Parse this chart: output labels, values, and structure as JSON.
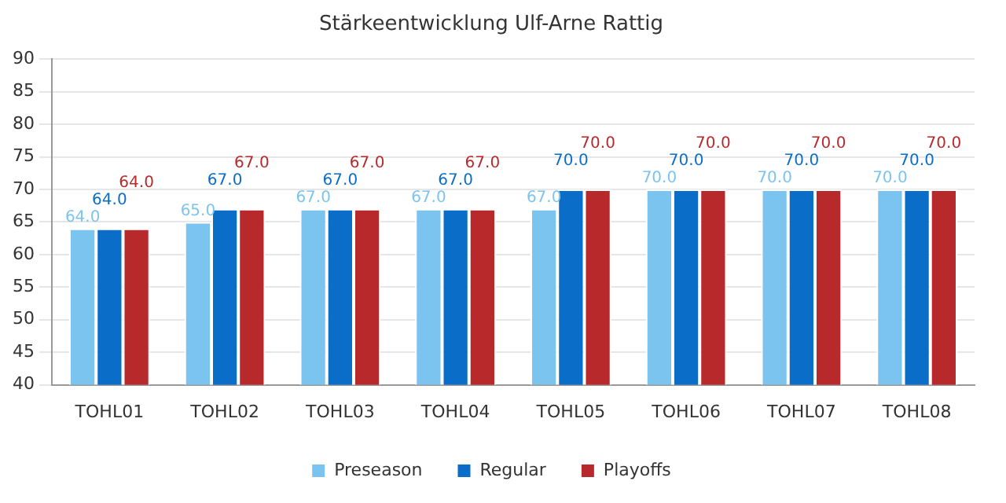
{
  "chart_data": {
    "type": "bar",
    "title": "Stärkeentwicklung Ulf-Arne Rattig",
    "categories": [
      "TOHL01",
      "TOHL02",
      "TOHL03",
      "TOHL04",
      "TOHL05",
      "TOHL06",
      "TOHL07",
      "TOHL08"
    ],
    "series": [
      {
        "name": "Preseason",
        "color": "#7cc4f0",
        "values": [
          64,
          65,
          67,
          67,
          67,
          70,
          70,
          70
        ],
        "value_labels": [
          "64.0",
          "65.0",
          "67.0",
          "67.0",
          "67.0",
          "70.0",
          "70.0",
          "70.0"
        ]
      },
      {
        "name": "Regular",
        "color": "#0a6dc8",
        "values": [
          64,
          67,
          67,
          67,
          70,
          70,
          70,
          70
        ],
        "value_labels": [
          "64.0",
          "67.0",
          "67.0",
          "67.0",
          "70.0",
          "70.0",
          "70.0",
          "70.0"
        ]
      },
      {
        "name": "Playoffs",
        "color": "#b8292b",
        "values": [
          64,
          67,
          67,
          67,
          70,
          70,
          70,
          70
        ],
        "value_labels": [
          "64.0",
          "67.0",
          "67.0",
          "67.0",
          "70.0",
          "70.0",
          "70.0",
          "70.0"
        ]
      }
    ],
    "ylim": [
      40,
      90
    ],
    "yticks": [
      40,
      45,
      50,
      55,
      60,
      65,
      70,
      75,
      80,
      85,
      90
    ],
    "grid": "y",
    "legend": "bottom"
  }
}
